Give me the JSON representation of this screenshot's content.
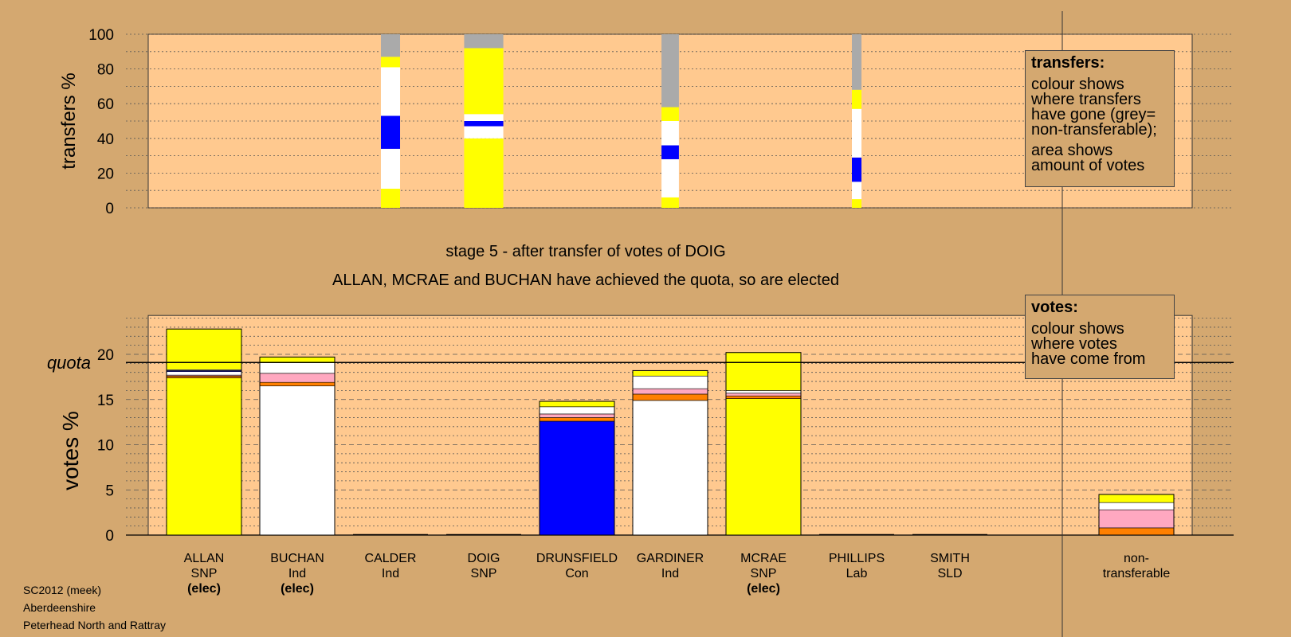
{
  "colors": {
    "background": "#d4a870",
    "plot_area": "#ffc98f",
    "snp": "#ffff00",
    "ind": "#ffffff",
    "con": "#0000ff",
    "lab": "#ffa8c0",
    "sld": "#ff8000",
    "non_transferable": "#aaaaaa"
  },
  "footer": {
    "line1": "SC2012 (meek)",
    "line2": "Aberdeenshire",
    "line3": "Peterhead North and Rattray"
  },
  "transfers_legend": {
    "title": "transfers:",
    "text1": "colour shows\nwhere transfers\nhave gone (grey=\nnon-transferable);",
    "text2": "area shows\namount of votes"
  },
  "votes_legend": {
    "title": "votes:",
    "text1": "colour shows\nwhere votes\nhave come from"
  },
  "chart_data": [
    {
      "type": "bar",
      "subtype": "stacked-transfers",
      "ylabel": "transfers %",
      "ylim": [
        0,
        100
      ],
      "yticks": [
        0,
        20,
        40,
        60,
        80,
        100
      ],
      "grid": "dotted every 10",
      "columns": [
        {
          "candidate": "CALDER",
          "width_fraction": 0.22,
          "segments": [
            {
              "color": "snp",
              "from": 0,
              "to": 11
            },
            {
              "color": "ind",
              "from": 11,
              "to": 34
            },
            {
              "color": "con",
              "from": 34,
              "to": 53
            },
            {
              "color": "ind",
              "from": 53,
              "to": 81
            },
            {
              "color": "snp",
              "from": 81,
              "to": 87
            },
            {
              "color": "non_transferable",
              "from": 87,
              "to": 100
            }
          ]
        },
        {
          "candidate": "DOIG",
          "width_fraction": 0.45,
          "segments": [
            {
              "color": "snp",
              "from": 0,
              "to": 40
            },
            {
              "color": "ind",
              "from": 40,
              "to": 47
            },
            {
              "color": "con",
              "from": 47,
              "to": 50
            },
            {
              "color": "ind",
              "from": 50,
              "to": 54
            },
            {
              "color": "snp",
              "from": 54,
              "to": 92
            },
            {
              "color": "non_transferable",
              "from": 92,
              "to": 100
            }
          ]
        },
        {
          "candidate": "GARDINER",
          "width_fraction": 0.2,
          "segments": [
            {
              "color": "snp",
              "from": 0,
              "to": 6
            },
            {
              "color": "ind",
              "from": 6,
              "to": 28
            },
            {
              "color": "con",
              "from": 28,
              "to": 36
            },
            {
              "color": "ind",
              "from": 36,
              "to": 50
            },
            {
              "color": "snp",
              "from": 50,
              "to": 58
            },
            {
              "color": "non_transferable",
              "from": 58,
              "to": 100
            }
          ]
        },
        {
          "candidate": "PHILLIPS",
          "width_fraction": 0.11,
          "segments": [
            {
              "color": "snp",
              "from": 0,
              "to": 5
            },
            {
              "color": "ind",
              "from": 5,
              "to": 15
            },
            {
              "color": "con",
              "from": 15,
              "to": 29
            },
            {
              "color": "ind",
              "from": 29,
              "to": 57
            },
            {
              "color": "snp",
              "from": 57,
              "to": 68
            },
            {
              "color": "non_transferable",
              "from": 68,
              "to": 100
            }
          ]
        }
      ]
    },
    {
      "type": "bar",
      "subtype": "stacked-votes",
      "title": "stage 5 - after transfer of votes of DOIG",
      "subtitle": "ALLAN, MCRAE and BUCHAN have achieved the quota, so are elected",
      "ylabel": "votes %",
      "ylim": [
        0,
        24.3
      ],
      "yticks": [
        0,
        5,
        10,
        15,
        20
      ],
      "quota": 19.1,
      "quota_label": "quota",
      "grid": "dashed every 5, dotted every 1",
      "categories": [
        {
          "name": "ALLAN",
          "party": "SNP",
          "status": "(elec)"
        },
        {
          "name": "BUCHAN",
          "party": "Ind",
          "status": "(elec)"
        },
        {
          "name": "CALDER",
          "party": "Ind",
          "status": ""
        },
        {
          "name": "DOIG",
          "party": "SNP",
          "status": ""
        },
        {
          "name": "DRUNSFIELD",
          "party": "Con",
          "status": ""
        },
        {
          "name": "GARDINER",
          "party": "Ind",
          "status": ""
        },
        {
          "name": "MCRAE",
          "party": "SNP",
          "status": "(elec)"
        },
        {
          "name": "PHILLIPS",
          "party": "Lab",
          "status": ""
        },
        {
          "name": "SMITH",
          "party": "SLD",
          "status": ""
        },
        {
          "name": "non-",
          "party": "transferable",
          "status": ""
        }
      ],
      "stacks": [
        [
          [
            "snp",
            17.4
          ],
          [
            "sld",
            0.2
          ],
          [
            "lab",
            0.1
          ],
          [
            "ind",
            0.4
          ],
          [
            "con",
            0.1
          ],
          [
            "ind",
            0.1
          ],
          [
            "snp",
            4.5
          ]
        ],
        [
          [
            "ind",
            16.5
          ],
          [
            "sld",
            0.4
          ],
          [
            "lab",
            1.0
          ],
          [
            "ind",
            1.2
          ],
          [
            "snp",
            0.6
          ]
        ],
        [],
        [],
        [
          [
            "con",
            12.6
          ],
          [
            "sld",
            0.4
          ],
          [
            "lab",
            0.4
          ],
          [
            "ind",
            0.8
          ],
          [
            "snp",
            0.6
          ]
        ],
        [
          [
            "ind",
            14.9
          ],
          [
            "sld",
            0.7
          ],
          [
            "lab",
            0.6
          ],
          [
            "ind",
            1.4
          ],
          [
            "snp",
            0.6
          ]
        ],
        [
          [
            "snp",
            15.1
          ],
          [
            "sld",
            0.3
          ],
          [
            "lab",
            0.3
          ],
          [
            "ind",
            0.3
          ],
          [
            "snp",
            4.2
          ]
        ],
        [],
        [],
        [
          [
            "sld",
            0.8
          ],
          [
            "lab",
            2.0
          ],
          [
            "ind",
            0.8
          ],
          [
            "snp",
            0.9
          ]
        ]
      ],
      "totals": [
        22.8,
        19.8,
        0,
        0,
        14.8,
        18.2,
        20.2,
        0,
        0,
        4.5
      ]
    }
  ]
}
